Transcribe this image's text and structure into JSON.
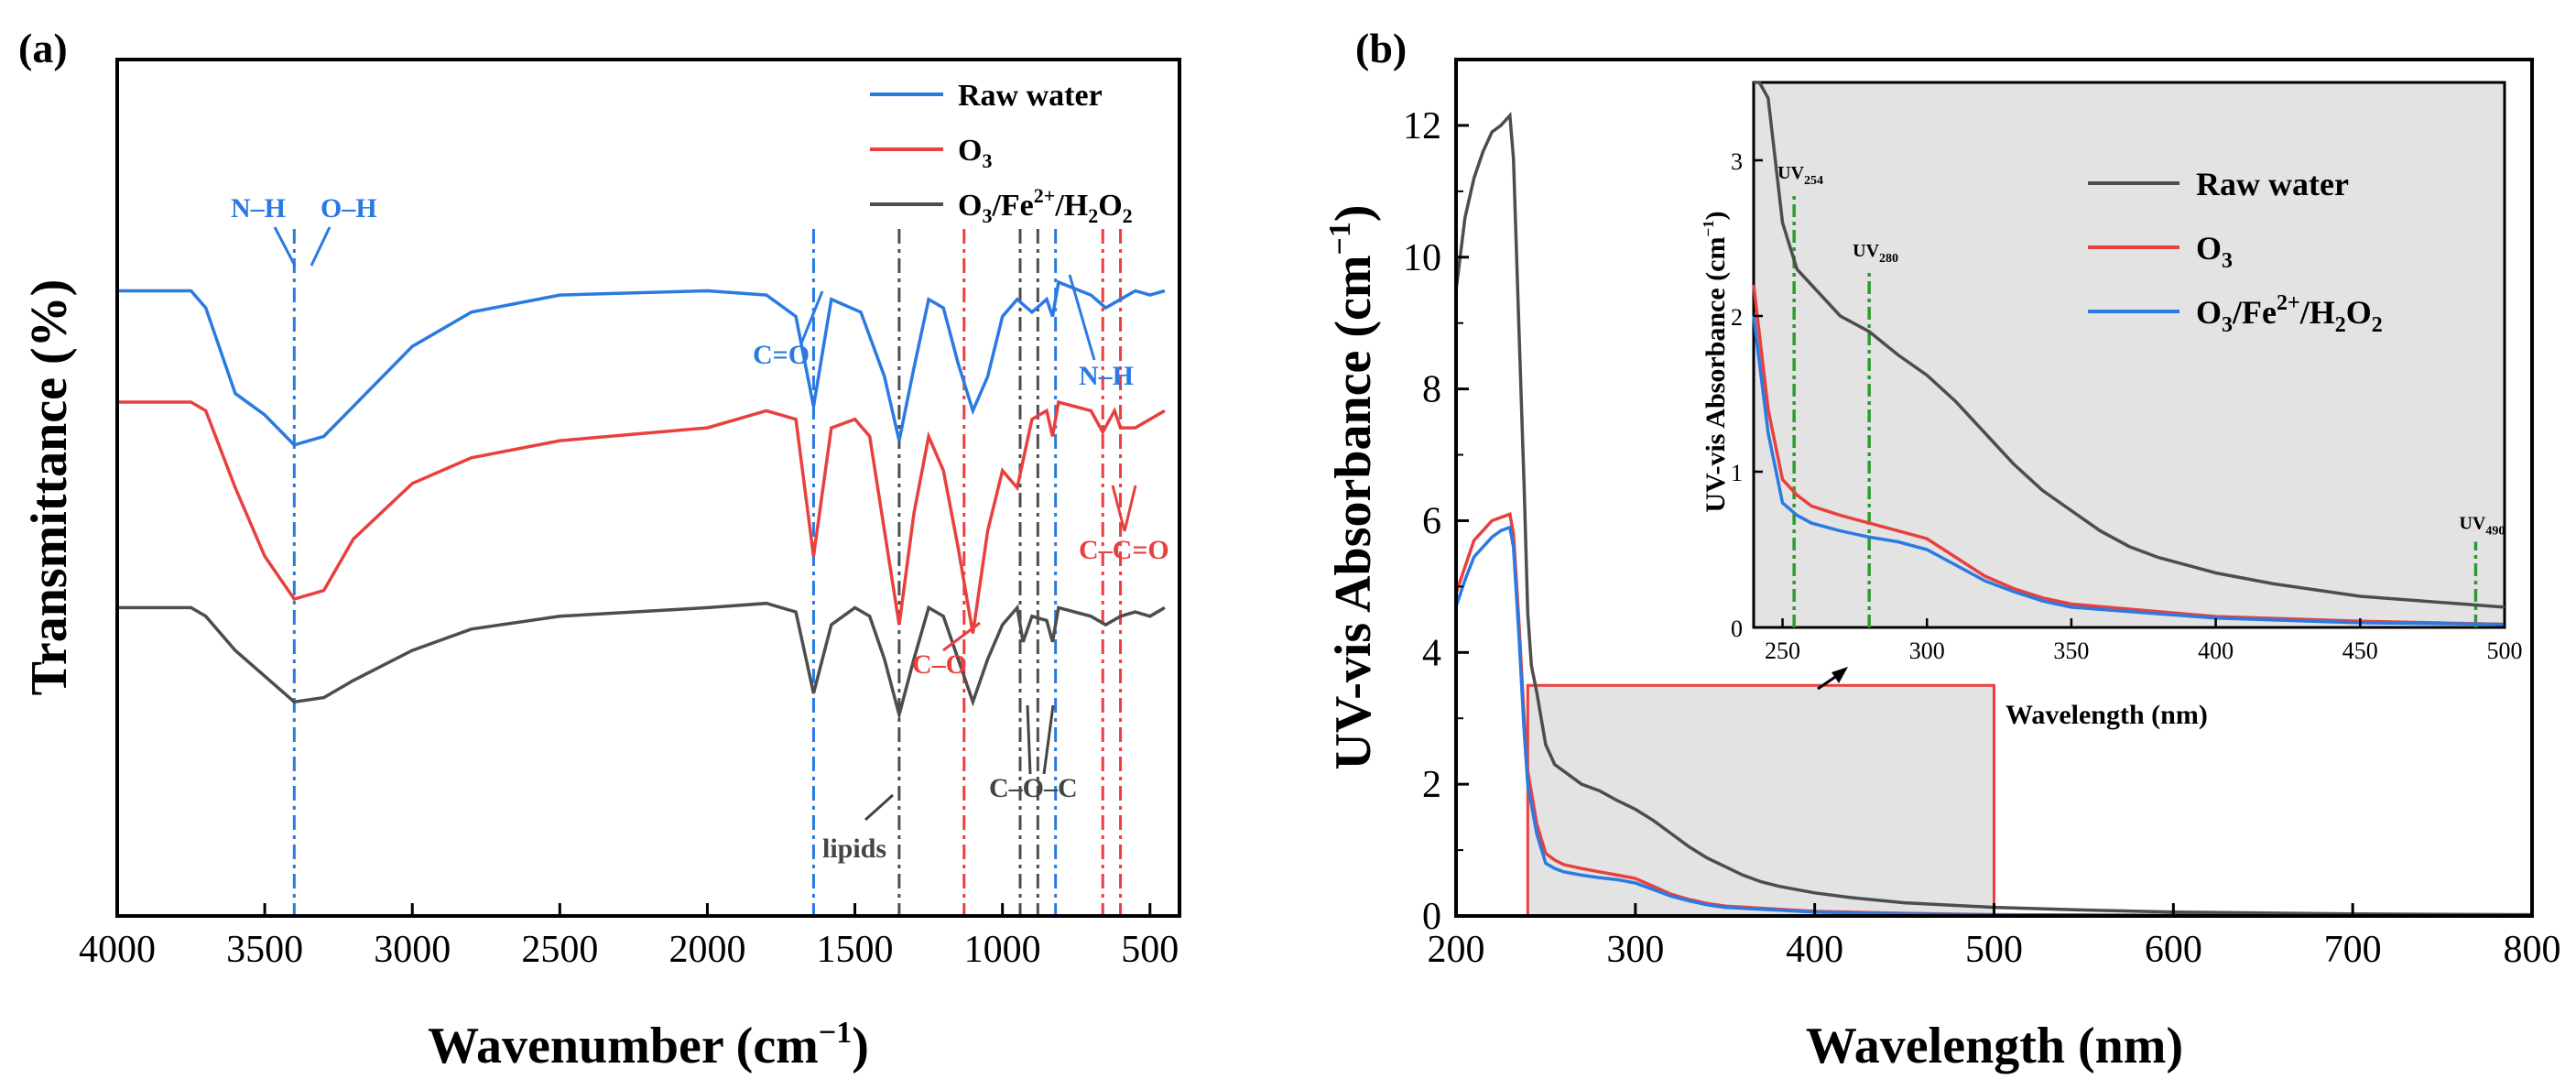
{
  "colors": {
    "raw": "#4d4d4d",
    "o3": "#e8403e",
    "fenton": "#2a7ae2",
    "green": "#2f9a2f",
    "shade": "#e3e3e3"
  },
  "chart_data": [
    {
      "id": "a",
      "type": "line",
      "panel_label": "(a)",
      "xlabel": "Wavenumber (cm",
      "xlabel_sup": "−1",
      "xlabel_end": ")",
      "ylabel": "Transmittance (%)",
      "xlim": [
        4000,
        400
      ],
      "xticks": [
        4000,
        3500,
        3000,
        2500,
        2000,
        1500,
        1000,
        500
      ],
      "legend": [
        "Raw water",
        "O",
        "O"
      ],
      "legend_parts": {
        "o3_sub": "3",
        "fenton_a": "O",
        "fenton_b": "/Fe",
        "fenton_c": "2+",
        "fenton_d": "/H",
        "fenton_e": "2",
        "fenton_f": "O",
        "fenton_g": "2",
        "fenton_sub1": "3"
      },
      "series": [
        {
          "name": "Raw water",
          "note": "relative transmittance, offset",
          "points": [
            [
              4000,
              0.73
            ],
            [
              3750,
              0.73
            ],
            [
              3700,
              0.71
            ],
            [
              3600,
              0.61
            ],
            [
              3500,
              0.585
            ],
            [
              3400,
              0.55
            ],
            [
              3300,
              0.56
            ],
            [
              3200,
              0.595
            ],
            [
              3000,
              0.665
            ],
            [
              2800,
              0.705
            ],
            [
              2500,
              0.725
            ],
            [
              2000,
              0.73
            ],
            [
              1800,
              0.725
            ],
            [
              1700,
              0.7
            ],
            [
              1640,
              0.595
            ],
            [
              1580,
              0.72
            ],
            [
              1480,
              0.705
            ],
            [
              1400,
              0.63
            ],
            [
              1350,
              0.555
            ],
            [
              1300,
              0.64
            ],
            [
              1250,
              0.72
            ],
            [
              1200,
              0.71
            ],
            [
              1150,
              0.645
            ],
            [
              1100,
              0.59
            ],
            [
              1050,
              0.63
            ],
            [
              1000,
              0.7
            ],
            [
              950,
              0.72
            ],
            [
              900,
              0.705
            ],
            [
              850,
              0.72
            ],
            [
              830,
              0.7
            ],
            [
              810,
              0.74
            ],
            [
              700,
              0.725
            ],
            [
              650,
              0.71
            ],
            [
              600,
              0.72
            ],
            [
              550,
              0.73
            ],
            [
              500,
              0.725
            ],
            [
              450,
              0.73
            ]
          ]
        },
        {
          "name": "O3",
          "note": "relative transmittance, offset",
          "points": [
            [
              4000,
              0.6
            ],
            [
              3750,
              0.6
            ],
            [
              3700,
              0.59
            ],
            [
              3600,
              0.5
            ],
            [
              3500,
              0.42
            ],
            [
              3400,
              0.37
            ],
            [
              3300,
              0.38
            ],
            [
              3200,
              0.44
            ],
            [
              3000,
              0.505
            ],
            [
              2800,
              0.535
            ],
            [
              2500,
              0.555
            ],
            [
              2000,
              0.57
            ],
            [
              1800,
              0.59
            ],
            [
              1700,
              0.58
            ],
            [
              1640,
              0.42
            ],
            [
              1580,
              0.57
            ],
            [
              1500,
              0.58
            ],
            [
              1450,
              0.56
            ],
            [
              1400,
              0.45
            ],
            [
              1350,
              0.34
            ],
            [
              1300,
              0.47
            ],
            [
              1250,
              0.56
            ],
            [
              1200,
              0.52
            ],
            [
              1150,
              0.43
            ],
            [
              1100,
              0.33
            ],
            [
              1050,
              0.45
            ],
            [
              1000,
              0.52
            ],
            [
              950,
              0.5
            ],
            [
              900,
              0.58
            ],
            [
              850,
              0.59
            ],
            [
              830,
              0.56
            ],
            [
              810,
              0.6
            ],
            [
              700,
              0.59
            ],
            [
              660,
              0.565
            ],
            [
              620,
              0.59
            ],
            [
              600,
              0.57
            ],
            [
              550,
              0.57
            ],
            [
              500,
              0.58
            ],
            [
              450,
              0.59
            ]
          ]
        },
        {
          "name": "O3/Fe2+/H2O2",
          "note": "relative transmittance, offset",
          "points": [
            [
              4000,
              0.36
            ],
            [
              3750,
              0.36
            ],
            [
              3700,
              0.35
            ],
            [
              3600,
              0.31
            ],
            [
              3500,
              0.28
            ],
            [
              3400,
              0.25
            ],
            [
              3300,
              0.255
            ],
            [
              3200,
              0.275
            ],
            [
              3000,
              0.31
            ],
            [
              2800,
              0.335
            ],
            [
              2500,
              0.35
            ],
            [
              2000,
              0.36
            ],
            [
              1800,
              0.365
            ],
            [
              1700,
              0.355
            ],
            [
              1640,
              0.26
            ],
            [
              1580,
              0.34
            ],
            [
              1500,
              0.36
            ],
            [
              1450,
              0.35
            ],
            [
              1400,
              0.3
            ],
            [
              1350,
              0.235
            ],
            [
              1300,
              0.3
            ],
            [
              1250,
              0.36
            ],
            [
              1200,
              0.35
            ],
            [
              1150,
              0.3
            ],
            [
              1100,
              0.25
            ],
            [
              1050,
              0.3
            ],
            [
              1000,
              0.34
            ],
            [
              950,
              0.36
            ],
            [
              930,
              0.32
            ],
            [
              900,
              0.35
            ],
            [
              850,
              0.345
            ],
            [
              830,
              0.32
            ],
            [
              810,
              0.36
            ],
            [
              700,
              0.35
            ],
            [
              650,
              0.34
            ],
            [
              600,
              0.35
            ],
            [
              550,
              0.355
            ],
            [
              500,
              0.35
            ],
            [
              450,
              0.36
            ]
          ]
        }
      ],
      "ref_lines": [
        {
          "x": 3400,
          "color": "fenton"
        },
        {
          "x": 1640,
          "color": "fenton"
        },
        {
          "x": 1350,
          "color": "raw"
        },
        {
          "x": 1130,
          "color": "o3"
        },
        {
          "x": 940,
          "color": "raw"
        },
        {
          "x": 880,
          "color": "raw"
        },
        {
          "x": 820,
          "color": "fenton"
        },
        {
          "x": 660,
          "color": "o3"
        },
        {
          "x": 600,
          "color": "o3"
        }
      ],
      "annotations": {
        "nh1": "N–H",
        "oh": "O–H",
        "co": "C=O",
        "nh2": "N–H",
        "cco": "C–C=O",
        "co_red": "C–O",
        "coc": "C–O–C",
        "lipids": "lipids"
      }
    },
    {
      "id": "b",
      "type": "line",
      "panel_label": "(b)",
      "xlabel": "Wavelength (nm)",
      "ylabel": "UV-vis Absorbance (cm",
      "ylabel_sup": "−1",
      "ylabel_end": ")",
      "xlim": [
        200,
        800
      ],
      "ylim": [
        0,
        13
      ],
      "xticks": [
        200,
        300,
        400,
        500,
        600,
        700,
        800
      ],
      "yticks": [
        0,
        2,
        4,
        6,
        8,
        10,
        12
      ],
      "highlight_box": {
        "x": [
          240,
          500
        ],
        "y": [
          0,
          3.5
        ]
      },
      "series": [
        {
          "name": "Raw water",
          "points": [
            [
              200,
              9.5
            ],
            [
              205,
              10.6
            ],
            [
              210,
              11.2
            ],
            [
              215,
              11.6
            ],
            [
              220,
              11.9
            ],
            [
              225,
              12.0
            ],
            [
              230,
              12.15
            ],
            [
              232,
              11.5
            ],
            [
              235,
              9.0
            ],
            [
              238,
              6.5
            ],
            [
              240,
              4.6
            ],
            [
              242,
              3.8
            ],
            [
              245,
              3.4
            ],
            [
              250,
              2.6
            ],
            [
              255,
              2.3
            ],
            [
              260,
              2.2
            ],
            [
              270,
              2.0
            ],
            [
              280,
              1.9
            ],
            [
              290,
              1.75
            ],
            [
              300,
              1.62
            ],
            [
              310,
              1.45
            ],
            [
              320,
              1.25
            ],
            [
              330,
              1.05
            ],
            [
              340,
              0.88
            ],
            [
              350,
              0.75
            ],
            [
              360,
              0.62
            ],
            [
              370,
              0.52
            ],
            [
              380,
              0.45
            ],
            [
              400,
              0.35
            ],
            [
              420,
              0.28
            ],
            [
              450,
              0.2
            ],
            [
              500,
              0.13
            ],
            [
              550,
              0.09
            ],
            [
              600,
              0.06
            ],
            [
              700,
              0.03
            ],
            [
              800,
              0.02
            ]
          ]
        },
        {
          "name": "O3",
          "points": [
            [
              200,
              4.9
            ],
            [
              205,
              5.3
            ],
            [
              210,
              5.7
            ],
            [
              215,
              5.85
            ],
            [
              220,
              6.0
            ],
            [
              225,
              6.05
            ],
            [
              230,
              6.1
            ],
            [
              232,
              5.8
            ],
            [
              235,
              4.5
            ],
            [
              238,
              3.0
            ],
            [
              240,
              2.2
            ],
            [
              245,
              1.4
            ],
            [
              250,
              0.95
            ],
            [
              255,
              0.85
            ],
            [
              260,
              0.78
            ],
            [
              270,
              0.72
            ],
            [
              280,
              0.67
            ],
            [
              290,
              0.62
            ],
            [
              300,
              0.57
            ],
            [
              310,
              0.45
            ],
            [
              320,
              0.33
            ],
            [
              330,
              0.25
            ],
            [
              340,
              0.19
            ],
            [
              350,
              0.15
            ],
            [
              400,
              0.07
            ],
            [
              450,
              0.04
            ],
            [
              500,
              0.02
            ],
            [
              600,
              0.01
            ],
            [
              800,
              0.0
            ]
          ]
        },
        {
          "name": "O3/Fe2+/H2O2",
          "points": [
            [
              200,
              4.7
            ],
            [
              205,
              5.1
            ],
            [
              210,
              5.45
            ],
            [
              215,
              5.6
            ],
            [
              220,
              5.75
            ],
            [
              225,
              5.85
            ],
            [
              230,
              5.9
            ],
            [
              232,
              5.6
            ],
            [
              235,
              4.3
            ],
            [
              238,
              2.8
            ],
            [
              240,
              2.0
            ],
            [
              245,
              1.25
            ],
            [
              250,
              0.8
            ],
            [
              255,
              0.72
            ],
            [
              260,
              0.67
            ],
            [
              270,
              0.62
            ],
            [
              280,
              0.58
            ],
            [
              290,
              0.55
            ],
            [
              300,
              0.5
            ],
            [
              310,
              0.4
            ],
            [
              320,
              0.3
            ],
            [
              330,
              0.23
            ],
            [
              340,
              0.17
            ],
            [
              350,
              0.13
            ],
            [
              400,
              0.06
            ],
            [
              450,
              0.03
            ],
            [
              500,
              0.02
            ],
            [
              600,
              0.01
            ],
            [
              800,
              0.0
            ]
          ]
        }
      ]
    },
    {
      "id": "b-inset",
      "type": "line",
      "xlabel": "Wavelength (nm)",
      "ylabel": "UV-vis Absorbance (cm",
      "ylabel_sup": "−1",
      "ylabel_end": ")",
      "xlim": [
        240,
        500
      ],
      "ylim": [
        0,
        3.5
      ],
      "xticks": [
        250,
        300,
        350,
        400,
        450,
        500
      ],
      "yticks": [
        0,
        1,
        2,
        3
      ],
      "legend": [
        "Raw water",
        "O",
        "O"
      ],
      "uv_markers": [
        {
          "x": 254,
          "top": 2.8,
          "label": "UV",
          "sub": "254"
        },
        {
          "x": 280,
          "top": 2.3,
          "label": "UV",
          "sub": "280"
        },
        {
          "x": 490,
          "top": 0.55,
          "label": "UV",
          "sub": "490"
        }
      ],
      "series_ref": "same as panel b"
    }
  ]
}
